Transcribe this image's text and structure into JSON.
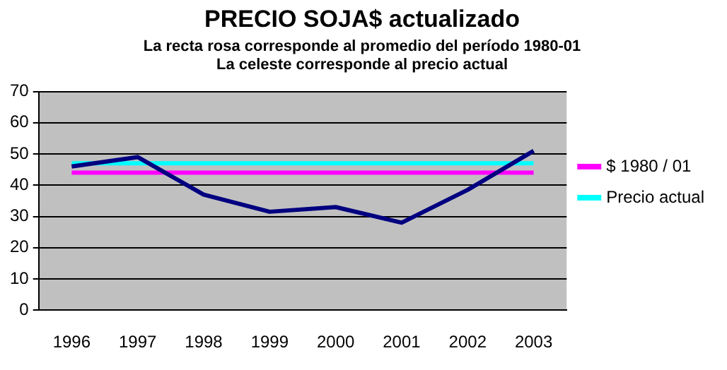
{
  "chart_data": {
    "type": "line",
    "title": "PRECIO SOJA$ actualizado",
    "subtitle": "La recta rosa corresponde al promedio del período 1980-01\nLa celeste corresponde al precio actual",
    "categories": [
      "1996",
      "1997",
      "1998",
      "1999",
      "2000",
      "2001",
      "2002",
      "2003"
    ],
    "series": [
      {
        "color": "#000080",
        "values": [
          46,
          49,
          37,
          31.5,
          33,
          28,
          38.5,
          51
        ]
      },
      {
        "name": "$ 1980 / 01",
        "color": "#ff00ff",
        "values": [
          44,
          44,
          44,
          44,
          44,
          44,
          44,
          44
        ]
      },
      {
        "name": "Precio actual",
        "color": "#00ffff",
        "values": [
          47,
          47,
          47,
          47,
          47,
          47,
          47,
          47
        ]
      }
    ],
    "ylim": [
      0,
      70
    ],
    "yticks": [
      0,
      10,
      20,
      30,
      40,
      50,
      60,
      70
    ],
    "grid": "y",
    "legend": "right",
    "marker": "none",
    "line_style": "solid"
  }
}
